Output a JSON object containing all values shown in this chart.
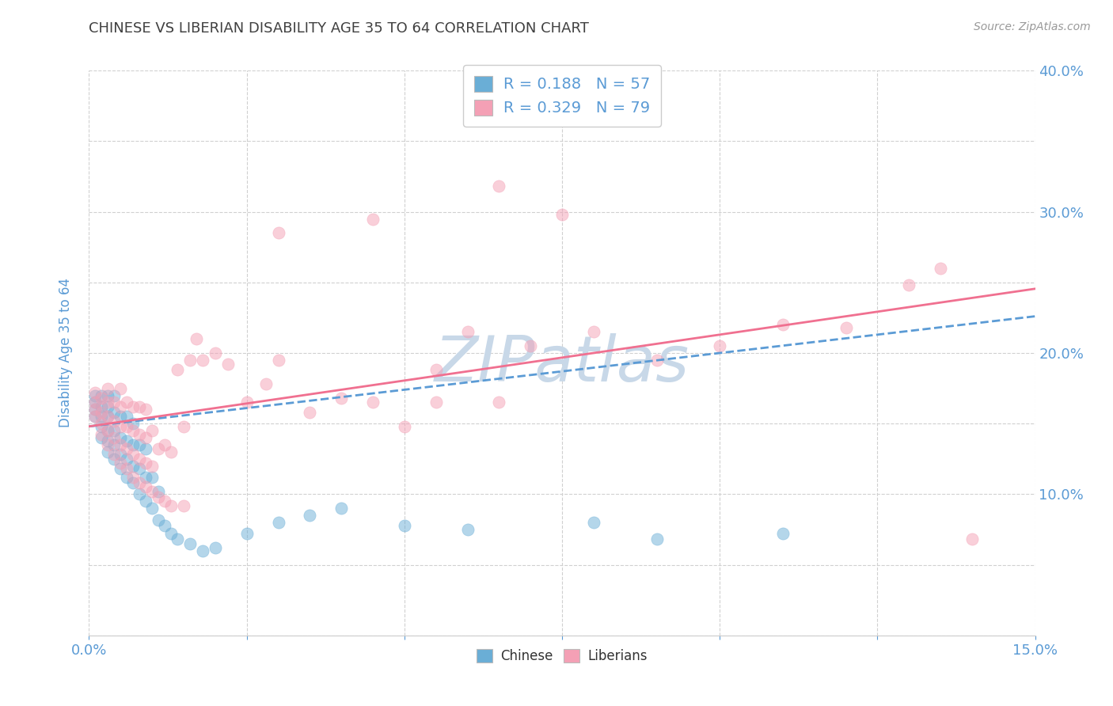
{
  "title": "CHINESE VS LIBERIAN DISABILITY AGE 35 TO 64 CORRELATION CHART",
  "source_text": "Source: ZipAtlas.com",
  "ylabel": "Disability Age 35 to 64",
  "xlim": [
    0.0,
    0.15
  ],
  "ylim": [
    0.0,
    0.4
  ],
  "xticks": [
    0.0,
    0.025,
    0.05,
    0.075,
    0.1,
    0.125,
    0.15
  ],
  "yticks": [
    0.0,
    0.05,
    0.1,
    0.15,
    0.2,
    0.25,
    0.3,
    0.35,
    0.4
  ],
  "xtick_labels": [
    "0.0%",
    "",
    "",
    "",
    "",
    "",
    "15.0%"
  ],
  "ytick_labels_right": [
    "",
    "",
    "10.0%",
    "",
    "20.0%",
    "",
    "30.0%",
    "",
    "40.0%"
  ],
  "chinese_R": 0.188,
  "chinese_N": 57,
  "liberian_R": 0.329,
  "liberian_N": 79,
  "chinese_color": "#6aaed6",
  "liberian_color": "#f4a0b5",
  "chinese_line_color": "#5b9bd5",
  "liberian_line_color": "#f07090",
  "title_color": "#404040",
  "axis_label_color": "#5b9bd5",
  "legend_text_color": "#5b9bd5",
  "watermark_text": "ZIPatlas",
  "watermark_color": "#c8d8e8",
  "background_color": "#ffffff",
  "chinese_x": [
    0.001,
    0.001,
    0.001,
    0.001,
    0.002,
    0.002,
    0.002,
    0.002,
    0.002,
    0.003,
    0.003,
    0.003,
    0.003,
    0.003,
    0.003,
    0.004,
    0.004,
    0.004,
    0.004,
    0.004,
    0.005,
    0.005,
    0.005,
    0.005,
    0.006,
    0.006,
    0.006,
    0.006,
    0.007,
    0.007,
    0.007,
    0.007,
    0.008,
    0.008,
    0.008,
    0.009,
    0.009,
    0.009,
    0.01,
    0.01,
    0.011,
    0.011,
    0.012,
    0.013,
    0.014,
    0.016,
    0.018,
    0.02,
    0.025,
    0.03,
    0.035,
    0.04,
    0.05,
    0.06,
    0.08,
    0.09,
    0.11
  ],
  "chinese_y": [
    0.155,
    0.16,
    0.165,
    0.17,
    0.14,
    0.148,
    0.155,
    0.162,
    0.17,
    0.13,
    0.138,
    0.145,
    0.155,
    0.162,
    0.17,
    0.125,
    0.135,
    0.145,
    0.158,
    0.17,
    0.118,
    0.128,
    0.14,
    0.155,
    0.112,
    0.125,
    0.138,
    0.155,
    0.108,
    0.12,
    0.135,
    0.15,
    0.1,
    0.118,
    0.135,
    0.095,
    0.112,
    0.132,
    0.09,
    0.112,
    0.082,
    0.102,
    0.078,
    0.072,
    0.068,
    0.065,
    0.06,
    0.062,
    0.072,
    0.08,
    0.085,
    0.09,
    0.078,
    0.075,
    0.08,
    0.068,
    0.072
  ],
  "liberian_x": [
    0.001,
    0.001,
    0.001,
    0.001,
    0.002,
    0.002,
    0.002,
    0.002,
    0.003,
    0.003,
    0.003,
    0.003,
    0.003,
    0.004,
    0.004,
    0.004,
    0.004,
    0.005,
    0.005,
    0.005,
    0.005,
    0.005,
    0.006,
    0.006,
    0.006,
    0.006,
    0.007,
    0.007,
    0.007,
    0.007,
    0.008,
    0.008,
    0.008,
    0.008,
    0.009,
    0.009,
    0.009,
    0.009,
    0.01,
    0.01,
    0.01,
    0.011,
    0.011,
    0.012,
    0.012,
    0.013,
    0.013,
    0.014,
    0.015,
    0.015,
    0.016,
    0.017,
    0.018,
    0.02,
    0.022,
    0.025,
    0.028,
    0.03,
    0.035,
    0.04,
    0.045,
    0.05,
    0.055,
    0.06,
    0.065,
    0.07,
    0.075,
    0.08,
    0.09,
    0.1,
    0.11,
    0.12,
    0.13,
    0.135,
    0.14,
    0.03,
    0.045,
    0.055,
    0.065
  ],
  "liberian_y": [
    0.155,
    0.16,
    0.165,
    0.172,
    0.142,
    0.15,
    0.158,
    0.168,
    0.135,
    0.145,
    0.155,
    0.165,
    0.175,
    0.128,
    0.14,
    0.152,
    0.165,
    0.122,
    0.135,
    0.148,
    0.162,
    0.175,
    0.118,
    0.132,
    0.148,
    0.165,
    0.112,
    0.128,
    0.145,
    0.162,
    0.108,
    0.125,
    0.142,
    0.162,
    0.105,
    0.122,
    0.14,
    0.16,
    0.102,
    0.12,
    0.145,
    0.098,
    0.132,
    0.095,
    0.135,
    0.092,
    0.13,
    0.188,
    0.092,
    0.148,
    0.195,
    0.21,
    0.195,
    0.2,
    0.192,
    0.165,
    0.178,
    0.195,
    0.158,
    0.168,
    0.165,
    0.148,
    0.188,
    0.215,
    0.165,
    0.205,
    0.298,
    0.215,
    0.195,
    0.205,
    0.22,
    0.218,
    0.248,
    0.26,
    0.068,
    0.285,
    0.295,
    0.165,
    0.318
  ],
  "trend_line_intercept_chinese": 0.148,
  "trend_line_slope_chinese": 0.52,
  "trend_line_intercept_liberian": 0.148,
  "trend_line_slope_liberian": 0.65
}
